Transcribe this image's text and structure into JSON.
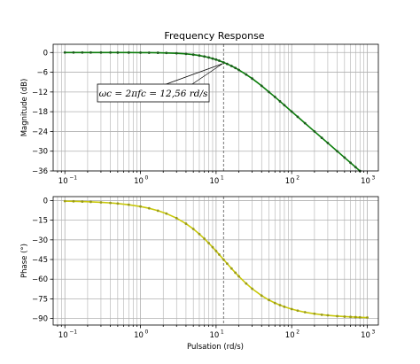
{
  "chart_data": [
    {
      "type": "line",
      "title": "Frequency Response",
      "xlabel": "",
      "ylabel": "Magnitude (dB)",
      "xscale": "log",
      "xlim": [
        0.07,
        1400
      ],
      "ylim": [
        -36,
        2.5
      ],
      "yticks": [
        0,
        -6,
        -12,
        -18,
        -24,
        -30,
        -36
      ],
      "ytick_labels": [
        "0",
        "−6",
        "−12",
        "−18",
        "−24",
        "−30",
        "−36"
      ],
      "xticks": [
        0.1,
        1,
        10,
        100,
        1000
      ],
      "xtick_labels": [
        {
          "base": "10",
          "exp": "−1"
        },
        {
          "base": "10",
          "exp": "0"
        },
        {
          "base": "10",
          "exp": "1"
        },
        {
          "base": "10",
          "exp": "2"
        },
        {
          "base": "10",
          "exp": "3"
        }
      ],
      "grid": true,
      "color": "#0a7d0a",
      "marker_color": "#1d5c1d",
      "series": [
        {
          "x": [
            0.1,
            0.13,
            0.17,
            0.22,
            0.3,
            0.4,
            0.5,
            0.7,
            1,
            1.3,
            1.7,
            2.2,
            3,
            4,
            5,
            6,
            7,
            8,
            9,
            10,
            11,
            12.56,
            14,
            16,
            18,
            20,
            25,
            30,
            40,
            50,
            60,
            70,
            80,
            100,
            120,
            150,
            200,
            250,
            300,
            400,
            500,
            600,
            700,
            800
          ],
          "y": [
            0,
            0,
            0,
            0,
            0,
            0,
            -0.01,
            -0.01,
            -0.03,
            -0.05,
            -0.08,
            -0.13,
            -0.24,
            -0.42,
            -0.65,
            -0.92,
            -1.21,
            -1.52,
            -1.84,
            -2.16,
            -2.48,
            -3.01,
            -3.47,
            -4.1,
            -4.7,
            -5.3,
            -6.7,
            -7.92,
            -10.12,
            -12.01,
            -13.5,
            -14.85,
            -16.0,
            -17.96,
            -19.55,
            -21.5,
            -24.0,
            -25.93,
            -27.5,
            -30.0,
            -31.94,
            -33.52,
            -34.86,
            -36.02
          ]
        }
      ],
      "annotation": {
        "text": "ωc = 2πfc = 12,56 rd/s",
        "xy": [
          12.56,
          -3.01
        ],
        "style": "box-with-arrow"
      },
      "vline": {
        "x": 12.56,
        "style": "dashed",
        "color": "#666666"
      }
    },
    {
      "type": "line",
      "title": "",
      "xlabel": "Pulsation (rd/s)",
      "ylabel": "Phase (°)",
      "xscale": "log",
      "xlim": [
        0.07,
        1400
      ],
      "ylim": [
        -95,
        3
      ],
      "yticks": [
        0,
        -15,
        -30,
        -45,
        -60,
        -75,
        -90
      ],
      "ytick_labels": [
        "0",
        "−15",
        "−30",
        "−45",
        "−60",
        "−75",
        "−90"
      ],
      "xticks": [
        0.1,
        1,
        10,
        100,
        1000
      ],
      "xtick_labels": [
        {
          "base": "10",
          "exp": "−1"
        },
        {
          "base": "10",
          "exp": "0"
        },
        {
          "base": "10",
          "exp": "1"
        },
        {
          "base": "10",
          "exp": "2"
        },
        {
          "base": "10",
          "exp": "3"
        }
      ],
      "grid": true,
      "color": "#c8c80a",
      "marker_color": "#9a9a1a",
      "series": [
        {
          "x": [
            0.1,
            0.13,
            0.17,
            0.22,
            0.3,
            0.4,
            0.5,
            0.7,
            1,
            1.3,
            1.7,
            2.2,
            3,
            4,
            5,
            6,
            7,
            8,
            9,
            10,
            11,
            12.56,
            14,
            16,
            18,
            20,
            25,
            30,
            40,
            50,
            60,
            70,
            80,
            100,
            120,
            150,
            200,
            250,
            300,
            400,
            500,
            600,
            700,
            800,
            1000
          ],
          "y": [
            -0.46,
            -0.59,
            -0.78,
            -1.0,
            -1.37,
            -1.82,
            -2.28,
            -3.19,
            -4.55,
            -5.91,
            -7.71,
            -9.94,
            -13.43,
            -17.67,
            -21.7,
            -25.53,
            -29.13,
            -32.49,
            -35.62,
            -38.53,
            -41.21,
            -45.0,
            -48.1,
            -51.87,
            -55.09,
            -57.87,
            -63.33,
            -67.28,
            -72.57,
            -75.91,
            -78.17,
            -79.81,
            -81.06,
            -82.84,
            -84.02,
            -85.22,
            -86.4,
            -87.12,
            -87.6,
            -88.2,
            -88.56,
            -88.8,
            -88.97,
            -89.1,
            -89.28
          ]
        }
      ],
      "vline": {
        "x": 12.56,
        "style": "dashed",
        "color": "#666666"
      }
    }
  ]
}
